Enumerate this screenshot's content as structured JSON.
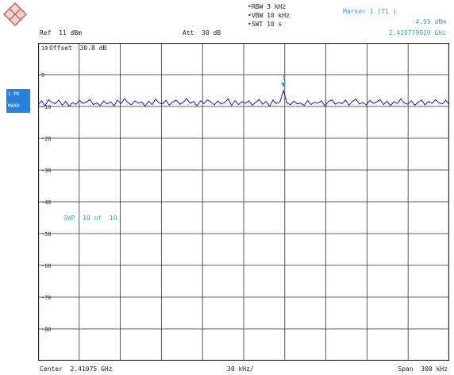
{
  "header": {
    "rbw": "•RBW 3 kHz",
    "vbw": "•VBW 10 kHz",
    "swt": "•SWT 10 s",
    "ref": "Ref  11 dBm",
    "att": "Att  30 dB",
    "marker_title": "Marker 1 [T1 ]",
    "marker_level": "-4.95 dBm",
    "marker_freq": "2.410779920 GHz"
  },
  "overlay": {
    "offset": "Offset  30.8 dB",
    "trace_det": "1 PK",
    "trace_mode": "MAXH",
    "marker_num": "1",
    "sgl": "SWP  10 of  10"
  },
  "footer": {
    "center": "Center  2.41075 GHz",
    "div": "30 kHz/",
    "span": "Span  300 kHz"
  },
  "colors": {
    "trace": "#1a1ac0",
    "accent": "#3aa6b8",
    "badge": "#2b7fd9"
  },
  "chart_data": {
    "type": "line",
    "title": "",
    "xlabel": "",
    "ylabel": "",
    "xlim": [
      2.4106,
      2.4109
    ],
    "ylim": [
      -90,
      10
    ],
    "yticks": [
      0,
      -10,
      -20,
      -30,
      -40,
      -50,
      -60,
      -70,
      -80
    ],
    "ytick_labels": [
      "0",
      "-10",
      "-20",
      "-30",
      "-40",
      "-50",
      "-60",
      "-70",
      "-80"
    ],
    "top_label": "10",
    "grid": true,
    "series": [
      {
        "values": [
          -9.5,
          -8.2,
          -9.8,
          -7.9,
          -8.7,
          -9.1,
          -8.0,
          -9.6,
          -8.4,
          -9.9,
          -8.8,
          -9.3,
          -8.1,
          -9.0,
          -8.6,
          -7.8,
          -9.4,
          -8.9,
          -9.7,
          -8.3,
          -9.2,
          -8.5,
          -9.8,
          -8.0,
          -9.1,
          -7.6,
          -8.8,
          -9.5,
          -8.2,
          -9.0,
          -8.6,
          -9.9,
          -8.3,
          -9.4,
          -7.7,
          -8.9,
          -9.2,
          -8.1,
          -9.6,
          -8.5,
          -8.0,
          -9.3,
          -8.7,
          -7.5,
          -9.0,
          -8.4,
          -9.8,
          -8.2,
          -9.1,
          -7.9,
          -8.6,
          -9.5,
          -8.3,
          -9.2,
          -8.8,
          -7.6,
          -9.7,
          -8.1,
          -9.4,
          -8.5,
          -9.0,
          -8.2,
          -9.6,
          -8.7,
          -7.8,
          -9.3,
          -8.4,
          -9.9,
          -8.0,
          -9.1,
          -8.6,
          -5.0,
          -8.8,
          -9.5,
          -8.3,
          -9.2,
          -8.9,
          -9.7,
          -8.1,
          -9.4,
          -8.6,
          -9.0,
          -8.2,
          -9.8,
          -8.5,
          -7.9,
          -9.3,
          -8.7,
          -9.1,
          -8.0,
          -9.6,
          -8.4,
          -7.7,
          -9.2,
          -8.8,
          -9.5,
          -8.1,
          -9.0,
          -8.6,
          -7.8,
          -9.4,
          -8.3,
          -9.7,
          -8.5,
          -9.1,
          -7.6,
          -8.9,
          -9.3,
          -8.2,
          -9.6,
          -8.7,
          -8.0,
          -9.5,
          -8.4,
          -9.0,
          -7.9,
          -8.8,
          -9.2,
          -8.1,
          -9.4
        ]
      }
    ]
  }
}
